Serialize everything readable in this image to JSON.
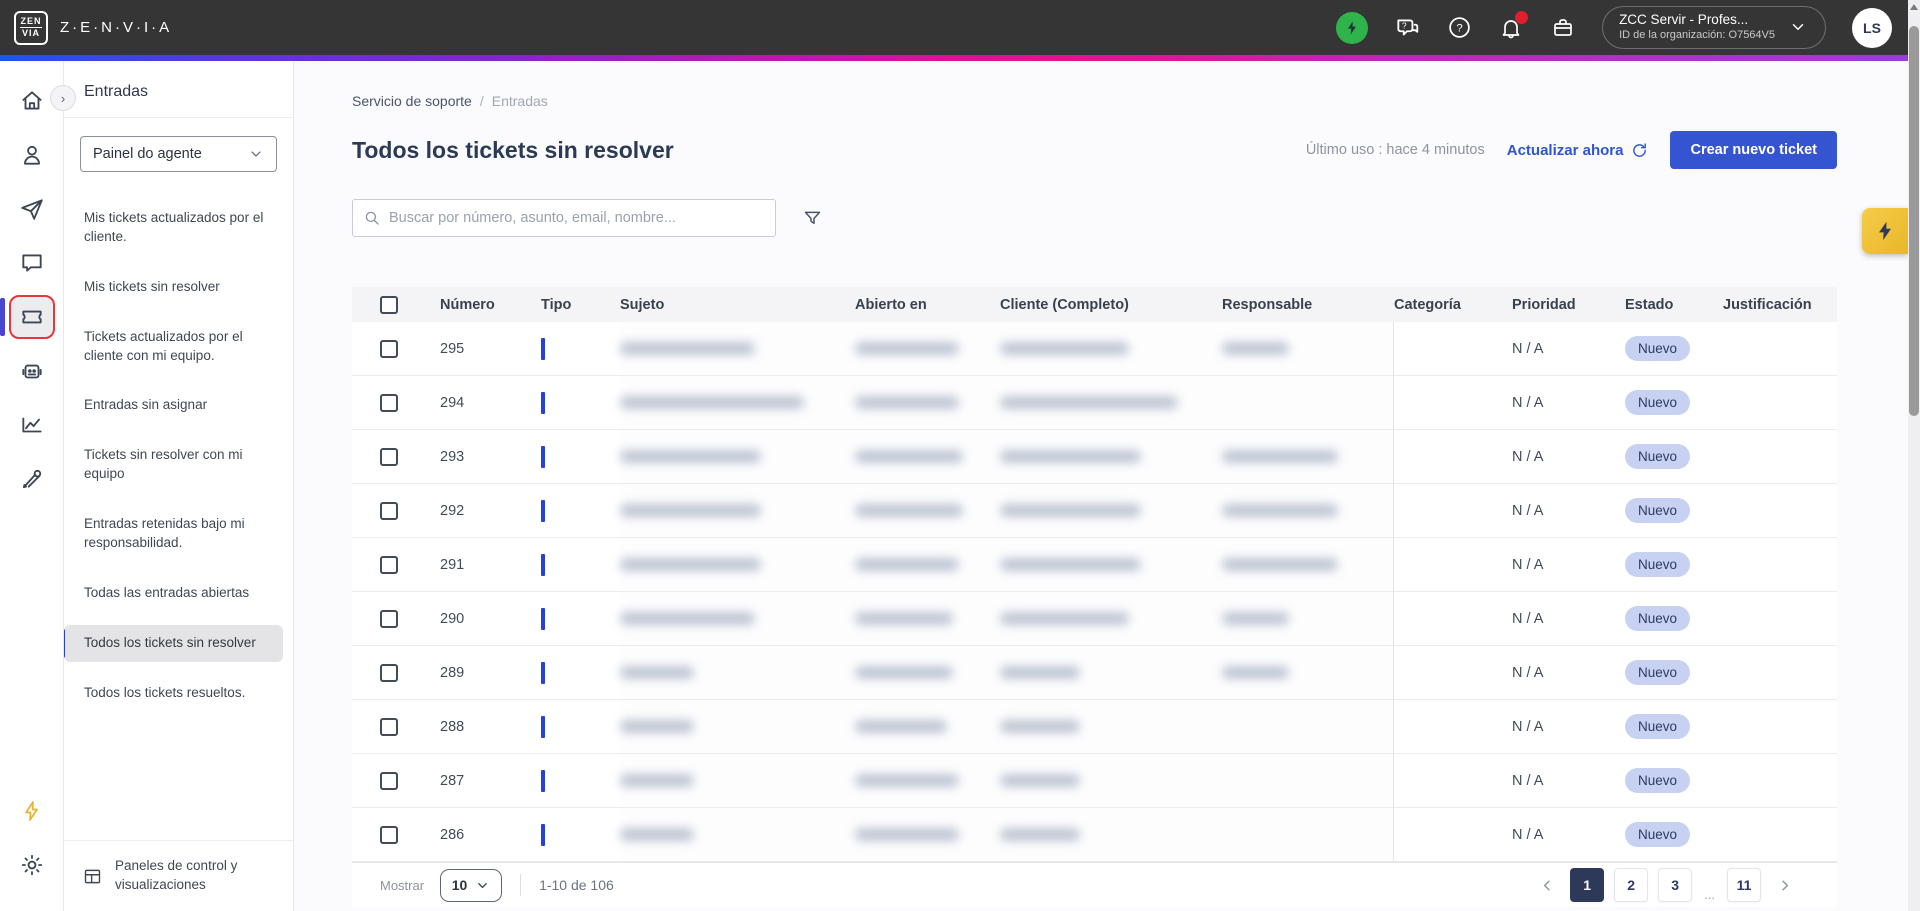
{
  "topbar": {
    "brand_word": "Z·E·N·V·I·A",
    "brand_glyph_top": "ZEN",
    "brand_glyph_bottom": "VIA",
    "icons": [
      "status-lightning-icon",
      "chat-question-icon",
      "help-icon",
      "notifications-bell-icon",
      "briefcase-icon"
    ],
    "org": {
      "name": "ZCC Servir - Profes...",
      "org_id": "ID de la organización: O7564V5"
    },
    "avatar_initials": "LS",
    "colors": {
      "bar": "#353535",
      "status_green": "#2fb44b",
      "notification_red": "#e11d2e"
    }
  },
  "icon_rail": {
    "items": [
      "home-icon",
      "contacts-icon",
      "send-icon",
      "chat-icon",
      "tickets-icon",
      "bot-icon",
      "analytics-icon",
      "tools-icon"
    ],
    "active_item": "tickets-icon",
    "bottom_items": [
      "lightning-icon",
      "settings-gear-icon"
    ]
  },
  "sidebar": {
    "title": "Entradas",
    "panel_select_value": "Painel do agente",
    "items": [
      {
        "label": "Mis tickets actualizados por el cliente.",
        "active": false
      },
      {
        "label": "Mis tickets sin resolver",
        "active": false
      },
      {
        "label": "Tickets actualizados por el cliente con mi equipo.",
        "active": false
      },
      {
        "label": "Entradas sin asignar",
        "active": false
      },
      {
        "label": "Tickets sin resolver con mi equipo",
        "active": false
      },
      {
        "label": "Entradas retenidas bajo mi responsabilidad.",
        "active": false
      },
      {
        "label": "Todas las entradas abiertas",
        "active": false
      },
      {
        "label": "Todos los tickets sin resolver",
        "active": true
      },
      {
        "label": "Todos los tickets resueltos.",
        "active": false
      }
    ],
    "footer_label": "Paneles de control y visualizaciones"
  },
  "main": {
    "breadcrumb": {
      "0": "Servicio de soporte",
      "sep": "/",
      "1": "Entradas"
    },
    "title": "Todos los tickets sin resolver",
    "last_use": "Último uso : hace 4 minutos",
    "refresh_label": "Actualizar ahora",
    "create_button": "Crear nuevo ticket",
    "search_placeholder": "Buscar por número, asunto, email, nombre...",
    "table": {
      "columns": {
        "numero": "Número",
        "tipo": "Tipo",
        "sujeto": "Sujeto",
        "abierto": "Abierto en",
        "cliente": "Cliente (Completo)",
        "responsable": "Responsable",
        "categoria": "Categoría",
        "prioridad": "Prioridad",
        "estado": "Estado",
        "justificacion": "Justificación"
      },
      "rows": [
        {
          "numero": "295",
          "prioridad": "N / A",
          "estado": "Nuevo",
          "blur": {
            "sujeto": 135,
            "abierto": 104,
            "cliente": 129,
            "responsable": 67
          }
        },
        {
          "numero": "294",
          "prioridad": "N / A",
          "estado": "Nuevo",
          "blur": {
            "sujeto": 184,
            "abierto": 104,
            "cliente": 178,
            "responsable": 0
          }
        },
        {
          "numero": "293",
          "prioridad": "N / A",
          "estado": "Nuevo",
          "blur": {
            "sujeto": 141,
            "abierto": 108,
            "cliente": 141,
            "responsable": 116
          }
        },
        {
          "numero": "292",
          "prioridad": "N / A",
          "estado": "Nuevo",
          "blur": {
            "sujeto": 141,
            "abierto": 108,
            "cliente": 141,
            "responsable": 116
          }
        },
        {
          "numero": "291",
          "prioridad": "N / A",
          "estado": "Nuevo",
          "blur": {
            "sujeto": 141,
            "abierto": 104,
            "cliente": 141,
            "responsable": 116
          }
        },
        {
          "numero": "290",
          "prioridad": "N / A",
          "estado": "Nuevo",
          "blur": {
            "sujeto": 135,
            "abierto": 98,
            "cliente": 129,
            "responsable": 67
          }
        },
        {
          "numero": "289",
          "prioridad": "N / A",
          "estado": "Nuevo",
          "blur": {
            "sujeto": 74,
            "abierto": 98,
            "cliente": 80,
            "responsable": 67
          }
        },
        {
          "numero": "288",
          "prioridad": "N / A",
          "estado": "Nuevo",
          "blur": {
            "sujeto": 74,
            "abierto": 92,
            "cliente": 80,
            "responsable": 0
          }
        },
        {
          "numero": "287",
          "prioridad": "N / A",
          "estado": "Nuevo",
          "blur": {
            "sujeto": 74,
            "abierto": 104,
            "cliente": 80,
            "responsable": 0
          }
        },
        {
          "numero": "286",
          "prioridad": "N / A",
          "estado": "Nuevo",
          "blur": {
            "sujeto": 74,
            "abierto": 104,
            "cliente": 80,
            "responsable": 0
          }
        }
      ],
      "badge_colors": {
        "bg": "#c7d2f2",
        "text": "#2c3a64"
      }
    },
    "pagination": {
      "mostrar_label": "Mostrar",
      "page_size": "10",
      "range": "1-10 de 106",
      "active": "1",
      "pages": [
        {
          "label": "1"
        },
        {
          "label": "2"
        },
        {
          "label": "3"
        },
        {
          "label": "...",
          "ellipsis": true
        },
        {
          "label": "11"
        }
      ]
    },
    "accent_colors": {
      "primary_blue": "#3554d1",
      "tipo_bar": "#2742d8",
      "fab_yellow": "#e9b728"
    }
  }
}
